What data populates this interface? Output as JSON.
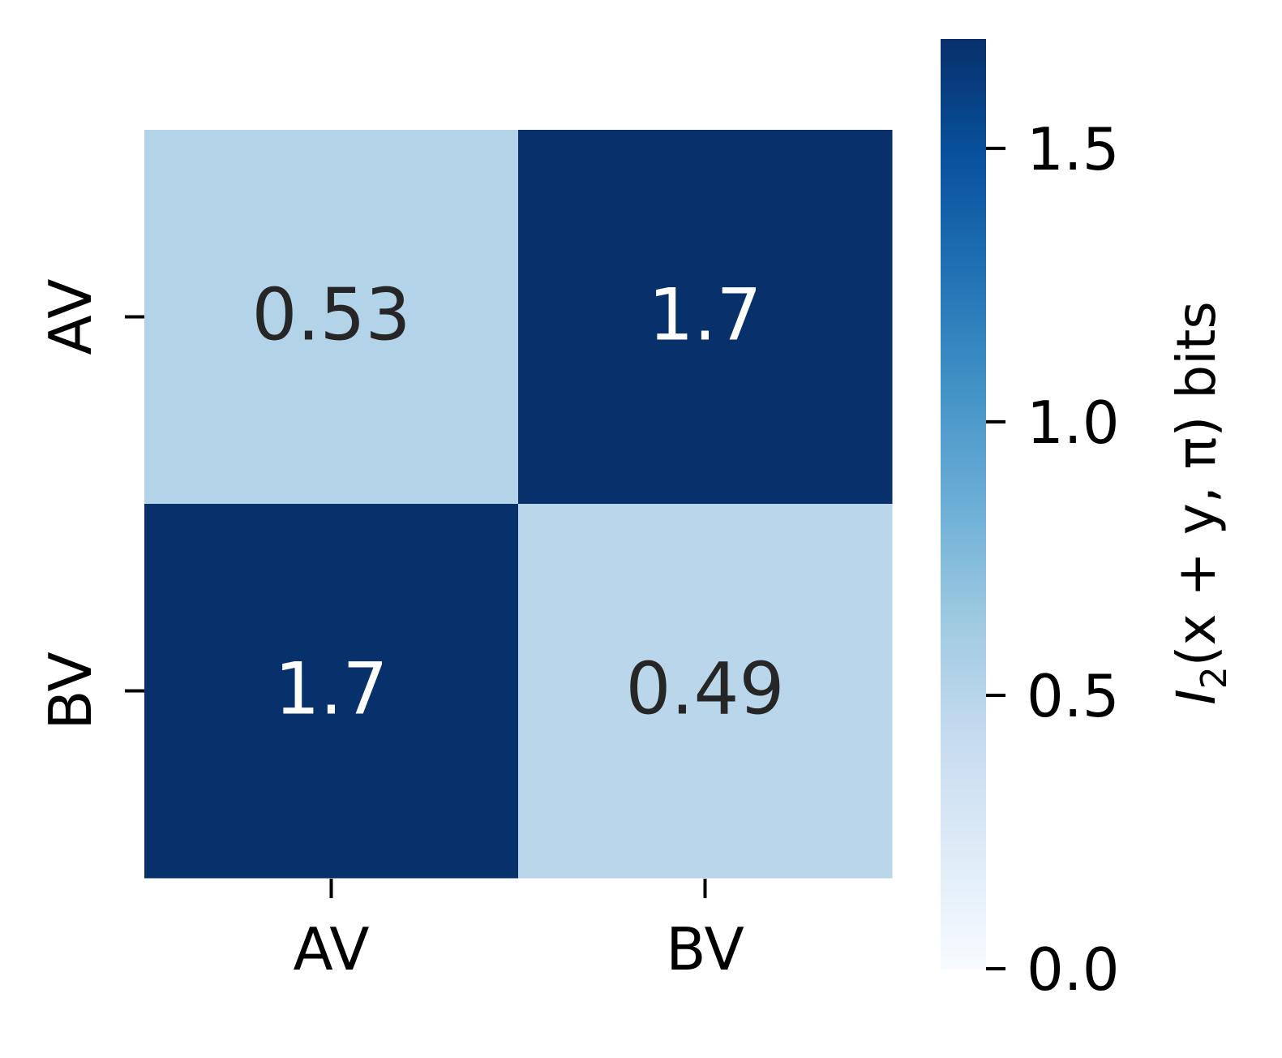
{
  "chart_data": {
    "type": "heatmap",
    "x_categories": [
      "AV",
      "BV"
    ],
    "y_categories": [
      "AV",
      "BV"
    ],
    "values": [
      [
        0.53,
        1.7
      ],
      [
        1.7,
        0.49
      ]
    ],
    "annotations": [
      [
        "0.53",
        "1.7"
      ],
      [
        "1.7",
        "0.49"
      ]
    ],
    "colormap": "Blues",
    "colorbar": {
      "range": [
        0.0,
        1.7
      ],
      "ticks": [
        "0.0",
        "0.5",
        "1.0",
        "1.5"
      ],
      "tick_values": [
        0.0,
        0.5,
        1.0,
        1.5
      ],
      "label_parts": [
        "I",
        "2",
        "(x + y, π) bits"
      ]
    }
  }
}
